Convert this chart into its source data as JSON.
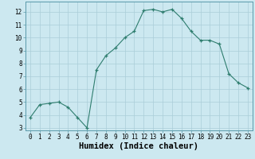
{
  "x": [
    0,
    1,
    2,
    3,
    4,
    5,
    6,
    7,
    8,
    9,
    10,
    11,
    12,
    13,
    14,
    15,
    16,
    17,
    18,
    19,
    20,
    21,
    22,
    23
  ],
  "y": [
    3.8,
    4.8,
    4.9,
    5.0,
    4.6,
    3.8,
    3.0,
    7.5,
    8.6,
    9.2,
    10.0,
    10.5,
    12.1,
    12.2,
    12.0,
    12.2,
    11.5,
    10.5,
    9.8,
    9.8,
    9.5,
    7.2,
    6.5,
    6.1
  ],
  "xlabel": "Humidex (Indice chaleur)",
  "ylim_min": 2.8,
  "ylim_max": 12.8,
  "xlim_min": -0.5,
  "xlim_max": 23.5,
  "yticks": [
    3,
    4,
    5,
    6,
    7,
    8,
    9,
    10,
    11,
    12
  ],
  "xticks": [
    0,
    1,
    2,
    3,
    4,
    5,
    6,
    7,
    8,
    9,
    10,
    11,
    12,
    13,
    14,
    15,
    16,
    17,
    18,
    19,
    20,
    21,
    22,
    23
  ],
  "line_color": "#2e7d6e",
  "marker_color": "#2e7d6e",
  "bg_color": "#cce8f0",
  "grid_color": "#aacdd8",
  "tick_label_fontsize": 5.5,
  "xlabel_fontsize": 7.5
}
